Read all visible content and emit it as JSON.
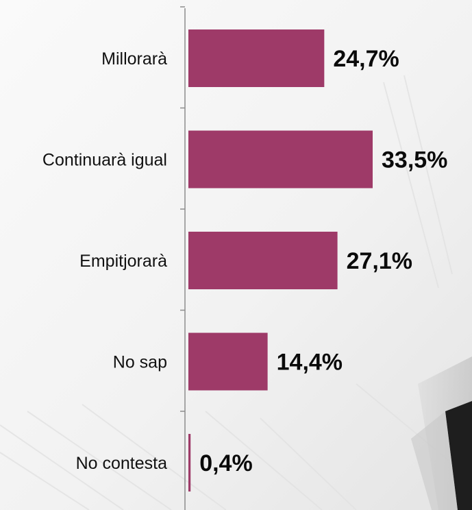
{
  "chart_data": {
    "type": "bar",
    "orientation": "horizontal",
    "categories": [
      "Millorarà",
      "Continuarà igual",
      "Empitjorarà",
      "No sap",
      "No contesta"
    ],
    "values": [
      24.7,
      33.5,
      27.1,
      14.4,
      0.4
    ],
    "value_labels": [
      "24,7%",
      "33,5%",
      "27,1%",
      "14,4%",
      "0,4%"
    ],
    "xlim": [
      0,
      33.5
    ],
    "grid": false,
    "legend": "none",
    "bar_color": "#9e3a68",
    "category_label_color": "#111111",
    "value_label_color": "#0a0a0a",
    "axis_color": "#8c8c8c"
  }
}
